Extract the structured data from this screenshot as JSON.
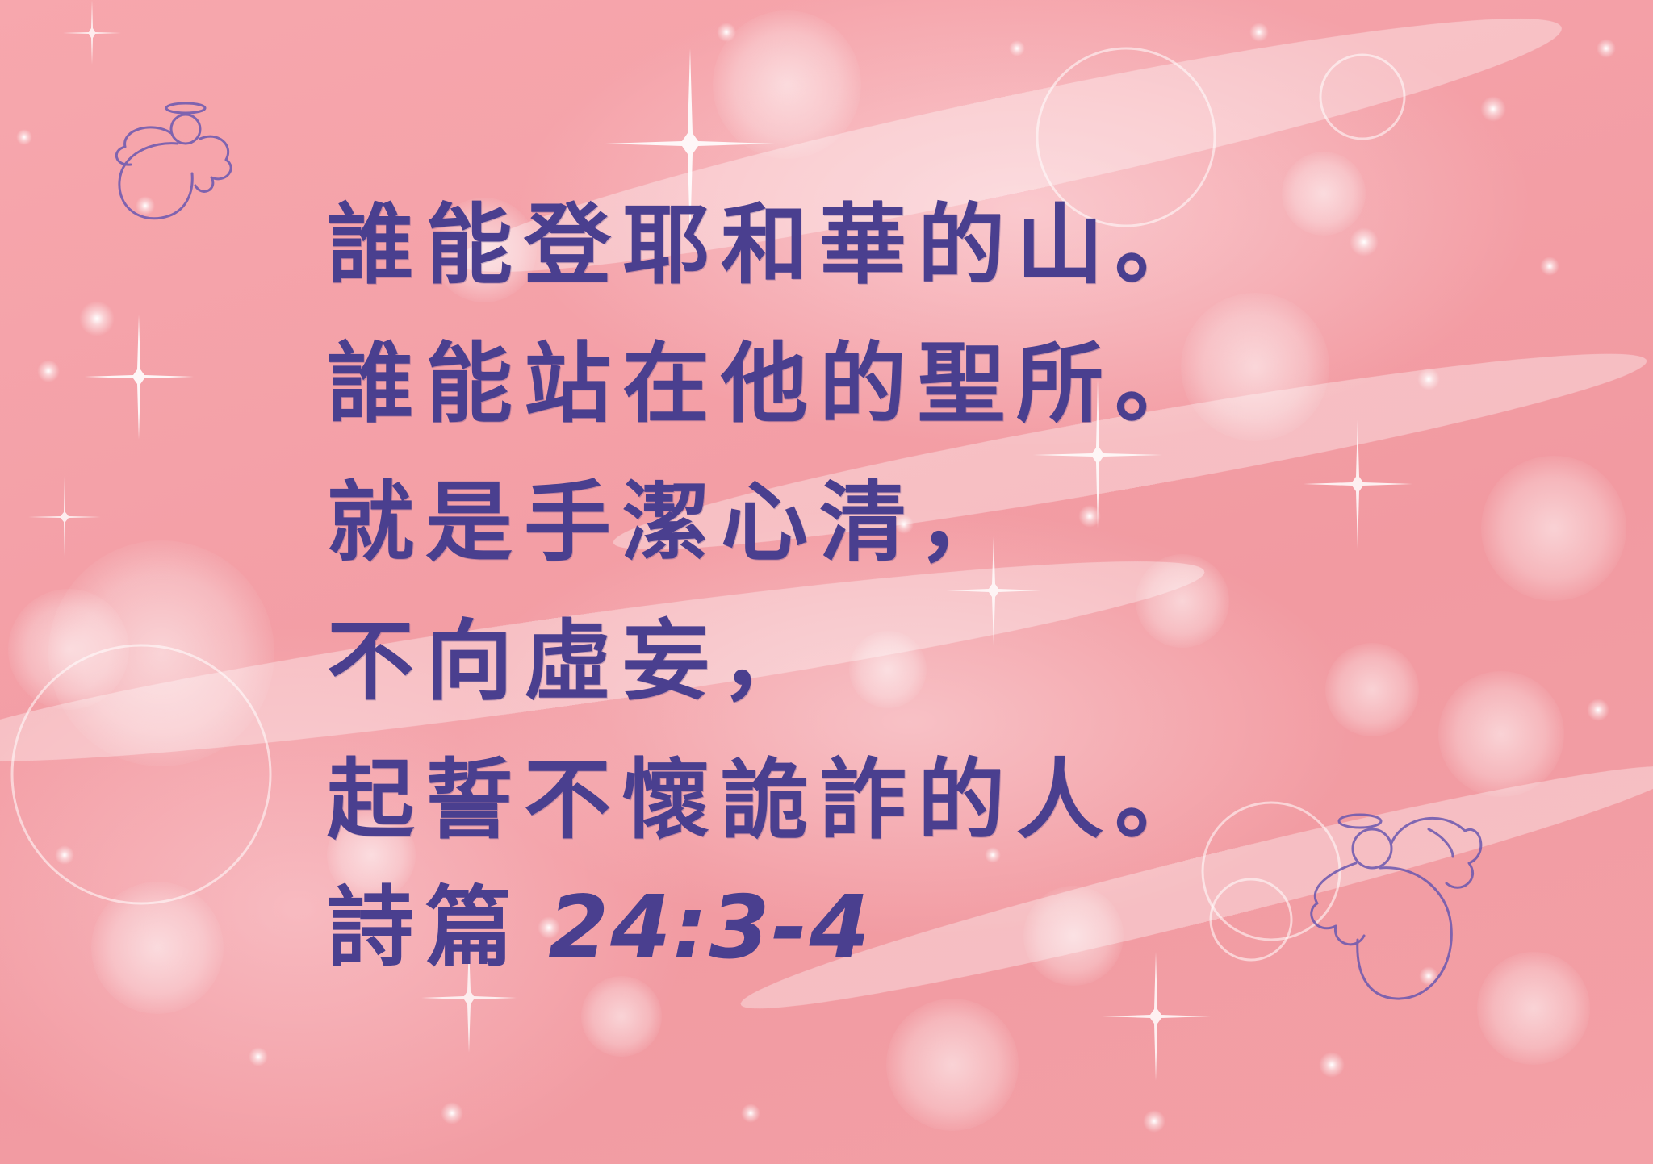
{
  "verse": {
    "lines": [
      "誰能登耶和華的山。",
      "誰能站在他的聖所。",
      "就是手潔心清，",
      "不向虛妄，",
      "起誓不懷詭詐的人。"
    ]
  },
  "reference": {
    "book": "詩篇",
    "chapter_verse": "24:3-4"
  },
  "colors": {
    "text": "#4a3f8f",
    "background": "#f4a1a8",
    "angel_outline": "#6a58b0"
  },
  "decorations": {
    "top_left": "angel-icon",
    "bottom_right": "angel-icon"
  }
}
